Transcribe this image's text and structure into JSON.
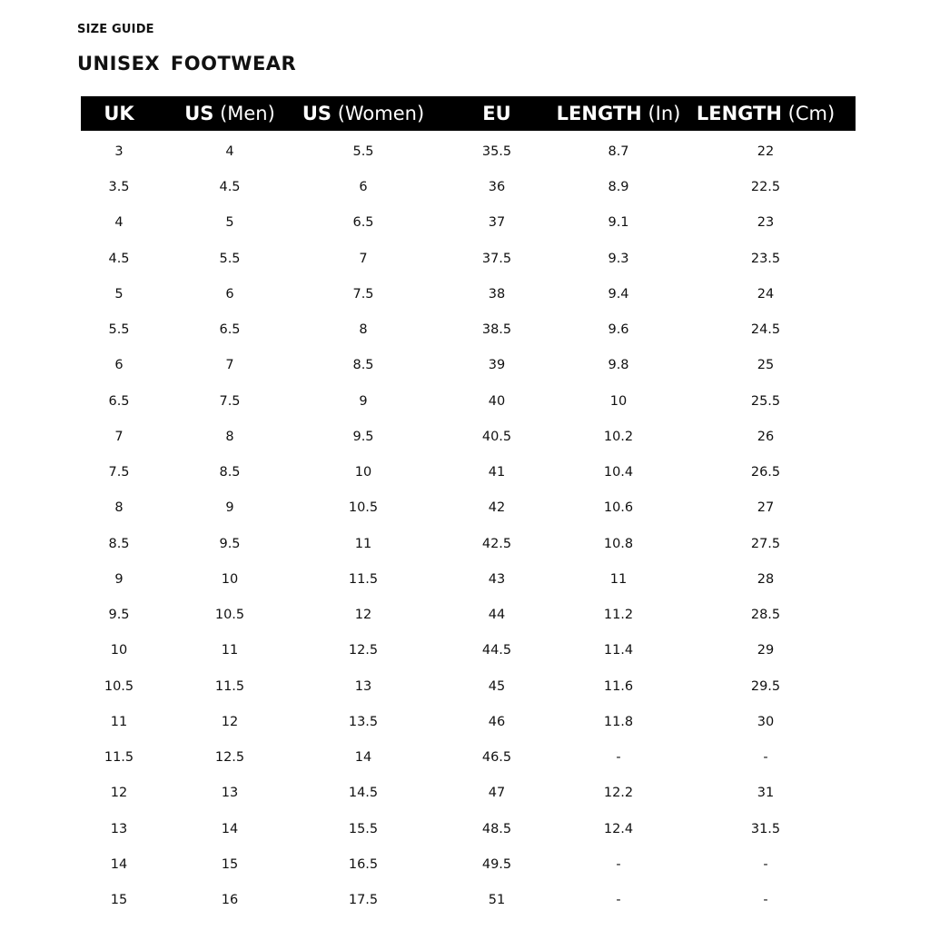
{
  "kicker": "SIZE GUIDE",
  "title": "UNISEX  FOOTWEAR",
  "columns": [
    {
      "bold": "UK",
      "unit": ""
    },
    {
      "bold": "US",
      "unit": "(Men)"
    },
    {
      "bold": "US",
      "unit": "(Women)"
    },
    {
      "bold": "EU",
      "unit": ""
    },
    {
      "bold": "LENGTH",
      "unit": "(In)"
    },
    {
      "bold": "LENGTH",
      "unit": "(Cm)"
    }
  ],
  "rows": [
    [
      "3",
      "4",
      "5.5",
      "35.5",
      "8.7",
      "22"
    ],
    [
      "3.5",
      "4.5",
      "6",
      "36",
      "8.9",
      "22.5"
    ],
    [
      "4",
      "5",
      "6.5",
      "37",
      "9.1",
      "23"
    ],
    [
      "4.5",
      "5.5",
      "7",
      "37.5",
      "9.3",
      "23.5"
    ],
    [
      "5",
      "6",
      "7.5",
      "38",
      "9.4",
      "24"
    ],
    [
      "5.5",
      "6.5",
      "8",
      "38.5",
      "9.6",
      "24.5"
    ],
    [
      "6",
      "7",
      "8.5",
      "39",
      "9.8",
      "25"
    ],
    [
      "6.5",
      "7.5",
      "9",
      "40",
      "10",
      "25.5"
    ],
    [
      "7",
      "8",
      "9.5",
      "40.5",
      "10.2",
      "26"
    ],
    [
      "7.5",
      "8.5",
      "10",
      "41",
      "10.4",
      "26.5"
    ],
    [
      "8",
      "9",
      "10.5",
      "42",
      "10.6",
      "27"
    ],
    [
      "8.5",
      "9.5",
      "11",
      "42.5",
      "10.8",
      "27.5"
    ],
    [
      "9",
      "10",
      "11.5",
      "43",
      "11",
      "28"
    ],
    [
      "9.5",
      "10.5",
      "12",
      "44",
      "11.2",
      "28.5"
    ],
    [
      "10",
      "11",
      "12.5",
      "44.5",
      "11.4",
      "29"
    ],
    [
      "10.5",
      "11.5",
      "13",
      "45",
      "11.6",
      "29.5"
    ],
    [
      "11",
      "12",
      "13.5",
      "46",
      "11.8",
      "30"
    ],
    [
      "11.5",
      "12.5",
      "14",
      "46.5",
      "-",
      "-"
    ],
    [
      "12",
      "13",
      "14.5",
      "47",
      "12.2",
      "31"
    ],
    [
      "13",
      "14",
      "15.5",
      "48.5",
      "12.4",
      "31.5"
    ],
    [
      "14",
      "15",
      "16.5",
      "49.5",
      "-",
      "-"
    ],
    [
      "15",
      "16",
      "17.5",
      "51",
      "-",
      "-"
    ]
  ]
}
